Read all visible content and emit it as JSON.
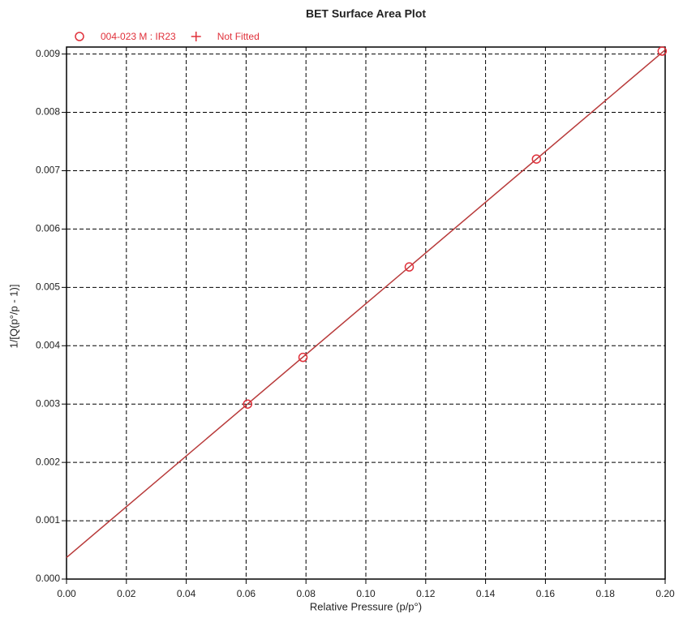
{
  "chart_data": {
    "type": "scatter",
    "title": "BET Surface Area Plot",
    "x_label": "Relative Pressure (p/p°)",
    "y_label": "1/[Q(p°/p - 1)]",
    "series": [
      {
        "name": "004-023 M : IR23",
        "color": "#e0303a",
        "marker": "circle",
        "x": [
          0.0605,
          0.079,
          0.1145,
          0.157,
          0.199
        ],
        "values": [
          0.003,
          0.0038,
          0.00535,
          0.0072,
          0.00905
        ]
      },
      {
        "name": "Not Fitted",
        "color": "#e0303a",
        "marker": "plus",
        "x": [],
        "values": []
      }
    ],
    "fit": {
      "x": [
        0,
        0.2
      ],
      "values": [
        0.00037,
        0.00907
      ],
      "color": "#b83a3a"
    },
    "xlim": [
      0,
      0.2
    ],
    "xticks": [
      {
        "value": 0,
        "label": "0.00"
      },
      0.02,
      0.04,
      0.06,
      0.08,
      {
        "value": 0.1,
        "label": "0.10"
      },
      0.12,
      0.14,
      0.16,
      0.18,
      {
        "value": 0.2,
        "label": "0.20"
      }
    ],
    "ylim": [
      0,
      0.00912
    ],
    "yticks": [
      {
        "value": 0,
        "label": "0.000"
      },
      0.001,
      0.002,
      0.003,
      0.004,
      0.005,
      0.006,
      0.007,
      0.008,
      0.009
    ],
    "grid": true
  }
}
